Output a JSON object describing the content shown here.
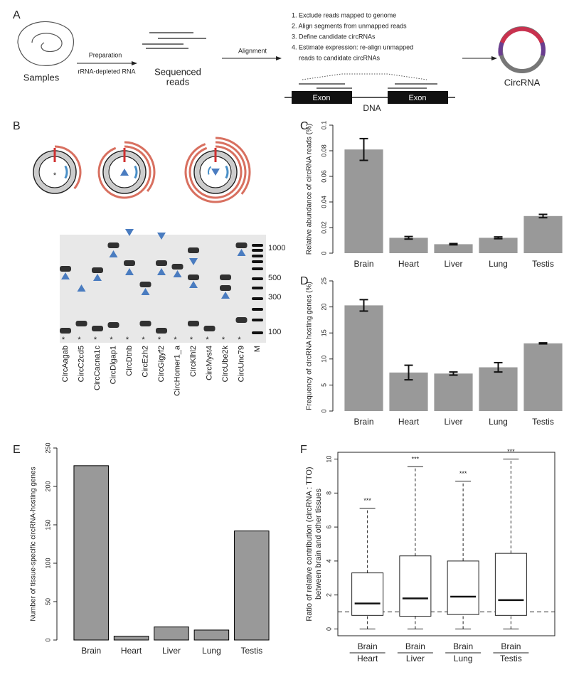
{
  "panel_a": {
    "label": "A",
    "samples": "Samples",
    "preparation": "Preparation",
    "rna": "rRNA-depleted RNA",
    "reads": [
      "Sequenced",
      "reads"
    ],
    "alignment": "Alignment",
    "steps": [
      "1. Exclude reads mapped to genome",
      "2. Align segments from unmapped reads",
      "3. Define candidate circRNAs",
      "4. Estimate expression: re-align unmapped",
      "reads to candidate circRNAs"
    ],
    "exon": "Exon",
    "dna": "DNA",
    "circrna": "CircRNA"
  },
  "panel_b": {
    "label": "B",
    "marker": "*",
    "lanes": [
      "CircAagab",
      "CircC2cd5",
      "CircCacna1c",
      "CircDlgap1",
      "CircDtnb",
      "CircEzh2",
      "CircGigyf2",
      "CircHomer1_a",
      "CircKlhl2",
      "CircMyst4",
      "CircUbe2k",
      "CircUnc79",
      "M"
    ],
    "sizes": [
      "1000",
      "500",
      "300",
      "100"
    ]
  },
  "chart_data": [
    {
      "type": "bar",
      "panel": "C",
      "ylabel": "Relative abundance of circRNA reads (%)",
      "categories": [
        "Brain",
        "Heart",
        "Liver",
        "Lung",
        "Testis"
      ],
      "values": [
        0.081,
        0.012,
        0.007,
        0.012,
        0.029
      ],
      "errors": [
        0.0085,
        0.001,
        0.0005,
        0.0007,
        0.0013
      ],
      "color": "#999999",
      "ylim": [
        0,
        0.1
      ],
      "yticks": [
        0,
        0.02,
        0.04,
        0.06,
        0.08,
        0.1
      ]
    },
    {
      "type": "bar",
      "panel": "D",
      "ylabel": "Frequency of circRNA hosting genes (%)",
      "categories": [
        "Brain",
        "Heart",
        "Liver",
        "Lung",
        "Testis"
      ],
      "values": [
        20.3,
        7.4,
        7.2,
        8.4,
        13.0
      ],
      "errors": [
        1.1,
        1.4,
        0.3,
        0.9,
        0.1
      ],
      "color": "#999999",
      "ylim": [
        0,
        25
      ],
      "yticks": [
        0,
        5,
        10,
        15,
        20,
        25
      ]
    },
    {
      "type": "bar",
      "panel": "E",
      "ylabel": "Number of tissue-specific circRNA-hosting genes",
      "categories": [
        "Brain",
        "Heart",
        "Liver",
        "Lung",
        "Testis"
      ],
      "values": [
        227,
        5,
        17,
        13,
        142
      ],
      "color": "#999999",
      "edgecolor": "#000000",
      "ylim": [
        0,
        250
      ],
      "yticks": [
        0,
        50,
        100,
        150,
        200,
        250
      ]
    },
    {
      "type": "box",
      "panel": "F",
      "ylabel": [
        "Ratio of relative contribution (circRNA : TTO)",
        "between brain and other tissues"
      ],
      "numerators": [
        "Brain",
        "Brain",
        "Brain",
        "Brain"
      ],
      "denominators": [
        "Heart",
        "Liver",
        "Lung",
        "Testis"
      ],
      "whisker_low": [
        0,
        0,
        0,
        0
      ],
      "q1": [
        0.8,
        0.75,
        0.85,
        0.8
      ],
      "median": [
        1.5,
        1.8,
        1.9,
        1.7
      ],
      "q3": [
        3.3,
        4.3,
        4.0,
        4.45
      ],
      "whisker_high": [
        7.1,
        9.55,
        8.7,
        10.0
      ],
      "annotations": [
        "***",
        "***",
        "***",
        "***"
      ],
      "hline": 1,
      "frame": true,
      "ylim": [
        -0.4,
        10.4
      ],
      "yticks": [
        0,
        2,
        4,
        6,
        8,
        10
      ]
    }
  ]
}
